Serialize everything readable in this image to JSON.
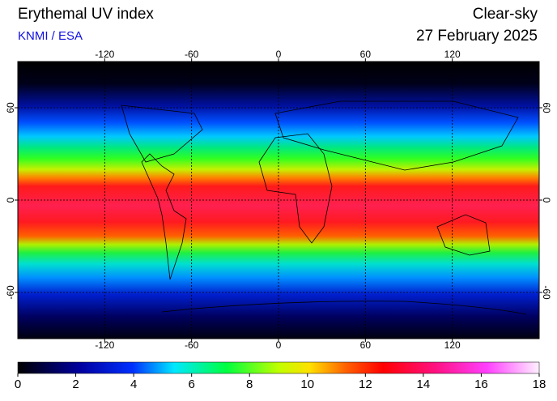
{
  "header": {
    "title": "Erythemal UV index",
    "source": "KNMI / ESA",
    "condition": "Clear-sky",
    "date": "27 February 2025"
  },
  "map": {
    "xlim": [
      -180,
      180
    ],
    "ylim": [
      -90,
      90
    ],
    "xticks": [
      -120,
      -60,
      0,
      60,
      120
    ],
    "yticks": [
      60,
      0,
      -60
    ],
    "grid": true
  },
  "colorbar": {
    "lim": [
      0,
      18
    ],
    "ticks": [
      0,
      2,
      4,
      6,
      8,
      10,
      12,
      14,
      16,
      18
    ]
  }
}
